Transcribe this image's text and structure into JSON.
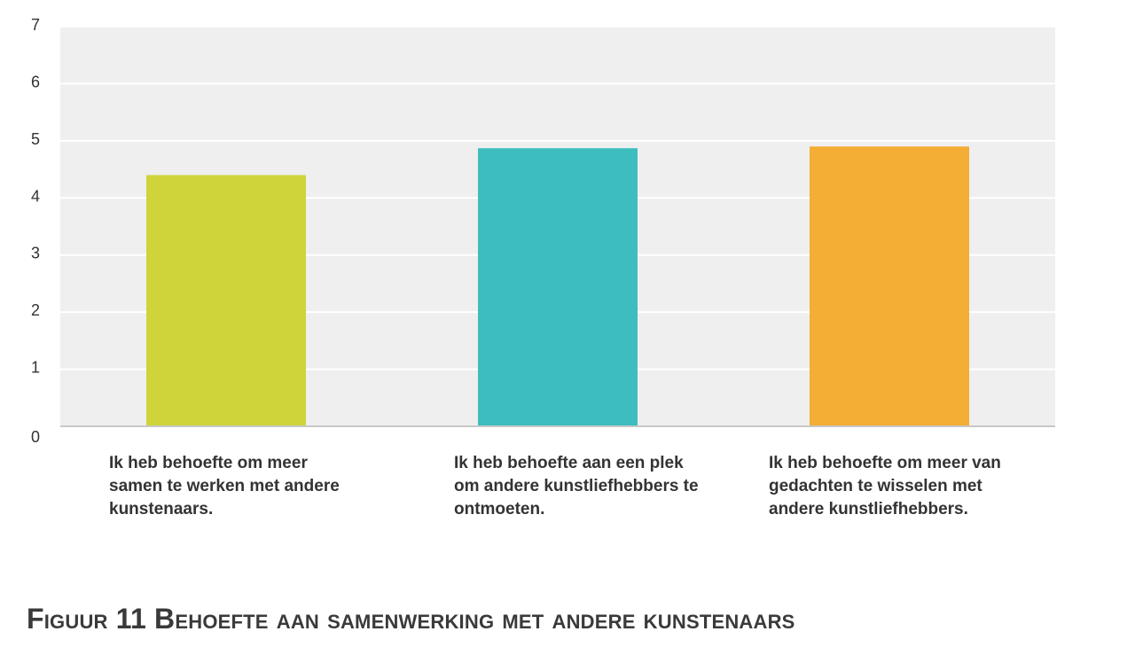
{
  "chart_data": {
    "type": "bar",
    "categories": [
      "Ik heb behoefte om meer samen te werken met andere kunstenaars.",
      "Ik heb behoefte aan een plek om andere kunstliefhebbers te ontmoeten.",
      "Ik heb behoefte om meer van gedachten te wisselen met andere kunstliefhebbers."
    ],
    "values": [
      4.4,
      4.87,
      4.9
    ],
    "colors": [
      "#cfd43a",
      "#3dbdbe",
      "#f4ad35"
    ],
    "ylim": [
      0,
      7
    ],
    "yticks": [
      "0",
      "1",
      "2",
      "3",
      "4",
      "5",
      "6",
      "7"
    ],
    "grid": true,
    "plot_background": "#efefef",
    "title": "",
    "xlabel": "",
    "ylabel": ""
  },
  "caption": "Figuur 11 Behoefte aan samenwerking met andere kunstenaars"
}
